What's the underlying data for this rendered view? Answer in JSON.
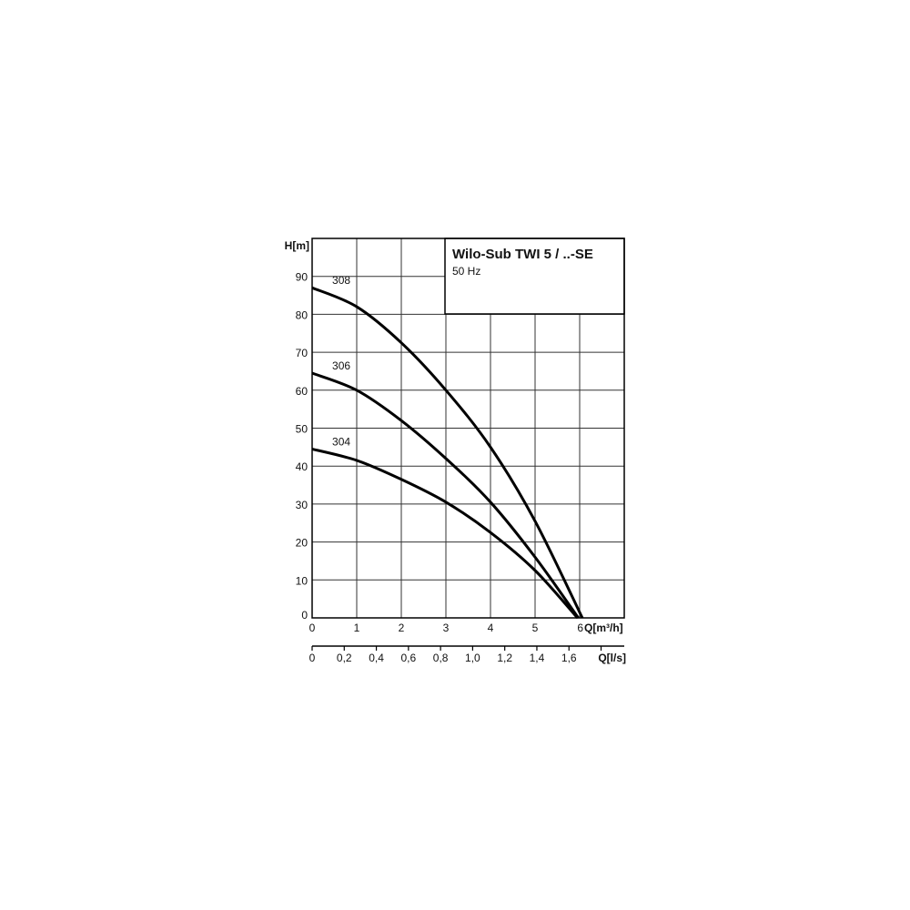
{
  "chart_data": {
    "type": "line",
    "title": "Wilo-Sub TWI 5 / ..-SE",
    "subtitle": "50 Hz",
    "xlabel": "Q[m³/h]",
    "ylabel": "H[m]",
    "x2label": "Q[l/s]",
    "xlim": [
      0,
      7
    ],
    "ylim": [
      0,
      100
    ],
    "x_ticks": [
      "0",
      "1",
      "2",
      "3",
      "4",
      "5",
      "6"
    ],
    "y_ticks": [
      "0",
      "10",
      "20",
      "30",
      "40",
      "50",
      "60",
      "70",
      "80",
      "90"
    ],
    "x2_ticks": [
      "0",
      "0,2",
      "0,4",
      "0,6",
      "0,8",
      "1,0",
      "1,2",
      "1,4",
      "1,6",
      ""
    ],
    "grid": true,
    "line_color": "#000000",
    "series": [
      {
        "name": "308",
        "x": [
          0,
          1,
          2,
          3,
          4,
          5,
          6.06
        ],
        "y": [
          87,
          82,
          72.5,
          60,
          45,
          25.5,
          0
        ]
      },
      {
        "name": "306",
        "x": [
          0,
          1,
          2,
          3,
          4,
          5,
          5.97
        ],
        "y": [
          64.5,
          60,
          52,
          42,
          30.5,
          16,
          0
        ]
      },
      {
        "name": "304",
        "x": [
          0,
          1,
          2,
          3,
          4,
          5,
          5.95
        ],
        "y": [
          44.5,
          41.5,
          36.5,
          30.5,
          22.5,
          12.5,
          0
        ]
      }
    ]
  }
}
